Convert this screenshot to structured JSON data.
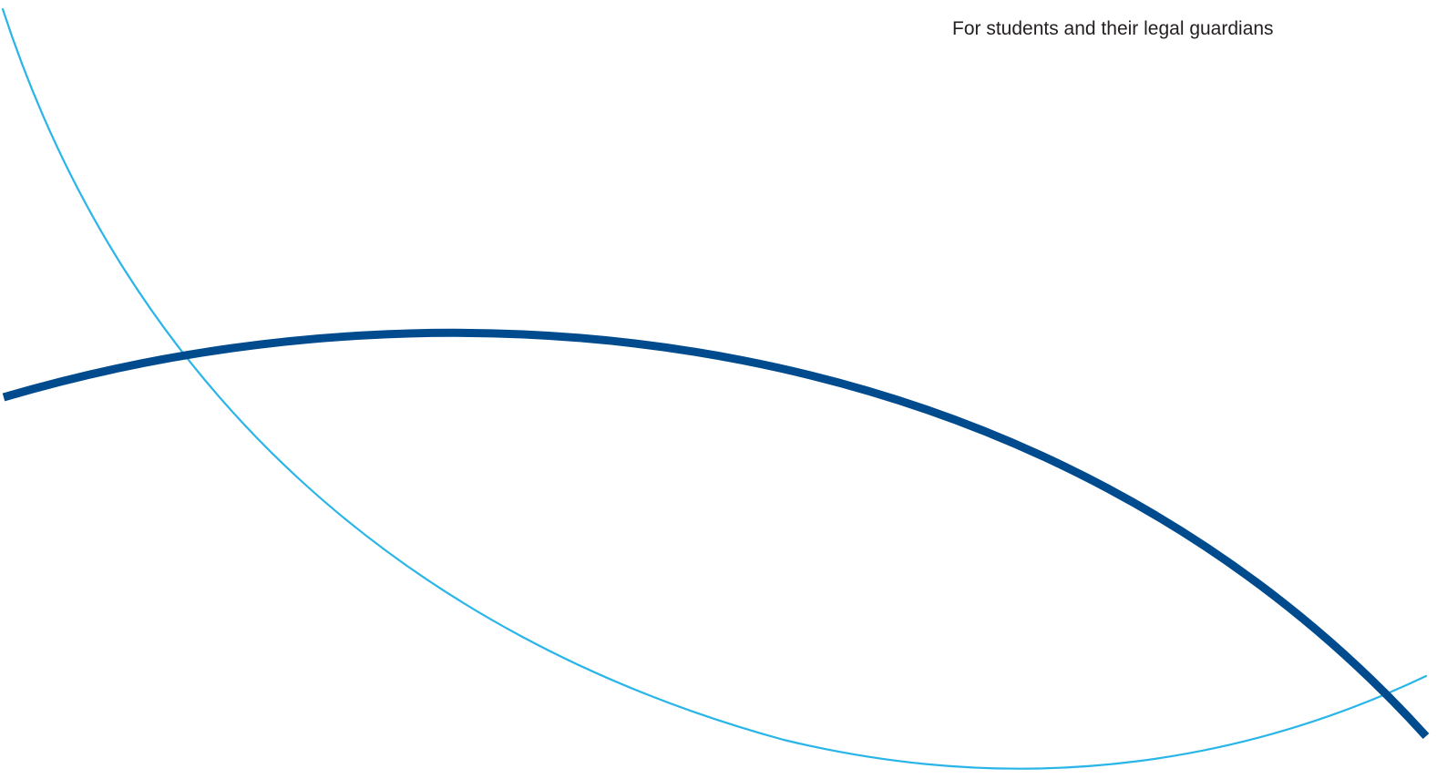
{
  "header": {
    "tagline": "For students and their legal guardians"
  },
  "decorations": {
    "thin_curve": {
      "color": "#29b5e8",
      "icon": "thin-light-blue-arc"
    },
    "thick_curve": {
      "color": "#004b8d",
      "icon": "thick-dark-blue-arc"
    }
  }
}
